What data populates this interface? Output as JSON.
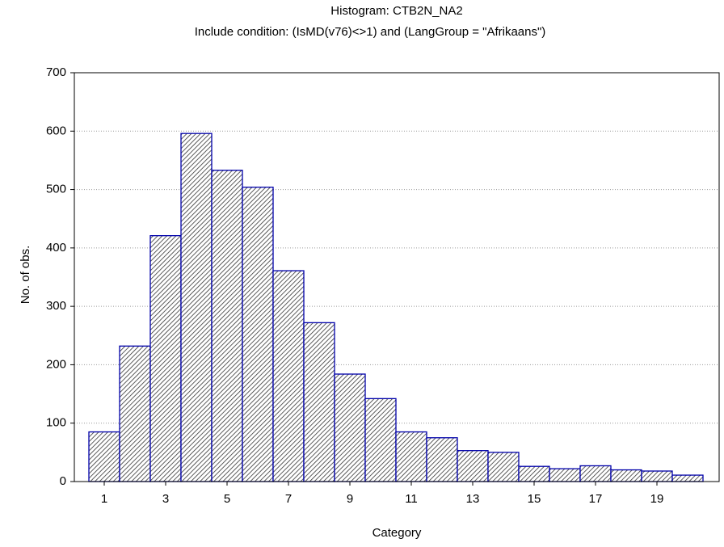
{
  "chart_data": {
    "type": "bar",
    "title": "Histogram: CTB2N_NA2",
    "subtitle": "Include condition: (IsMD(v76)<>1)  and (LangGroup = \"Afrikaans\")",
    "x_label": "Category",
    "y_label": "No. of obs.",
    "categories": [
      "1",
      null,
      "3",
      null,
      "5",
      null,
      "7",
      null,
      "9",
      null,
      "11",
      null,
      "13",
      null,
      "15",
      null,
      "17",
      null,
      "19",
      null
    ],
    "values": [
      85,
      232,
      421,
      596,
      533,
      504,
      361,
      272,
      184,
      142,
      85,
      75,
      53,
      50,
      26,
      22,
      27,
      20,
      18,
      11
    ],
    "color": "#0000aa",
    "ylim": [
      0,
      700
    ],
    "yticks": [
      0,
      100,
      200,
      300,
      400,
      500,
      600,
      700
    ],
    "grid": true
  }
}
